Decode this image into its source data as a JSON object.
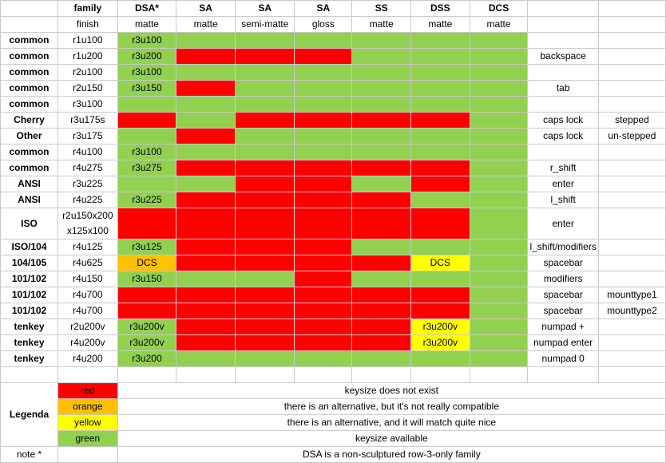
{
  "headers": {
    "row1": [
      "",
      "family",
      "DSA*",
      "SA",
      "SA",
      "SA",
      "SS",
      "DSS",
      "DCS",
      "",
      ""
    ],
    "row2": [
      "",
      "finish",
      "matte",
      "matte",
      "semi-matte",
      "gloss",
      "matte",
      "matte",
      "matte",
      "",
      ""
    ]
  },
  "colors": {
    "red": "#ff0000",
    "green": "#92d050",
    "orange": "#ffc000",
    "yellow": "#ffff00"
  },
  "rows": [
    {
      "family": "common",
      "size": "r1u100",
      "cells": [
        {
          "c": "green",
          "t": "r3u100"
        },
        {
          "c": "green"
        },
        {
          "c": "green"
        },
        {
          "c": "green"
        },
        {
          "c": "green"
        },
        {
          "c": "green"
        },
        {
          "c": "green"
        }
      ],
      "note1": "",
      "note2": ""
    },
    {
      "family": "common",
      "size": "r1u200",
      "cells": [
        {
          "c": "green",
          "t": "r3u200"
        },
        {
          "c": "red"
        },
        {
          "c": "red"
        },
        {
          "c": "red"
        },
        {
          "c": "green"
        },
        {
          "c": "green"
        },
        {
          "c": "green"
        }
      ],
      "note1": "backspace",
      "note2": ""
    },
    {
      "family": "common",
      "size": "r2u100",
      "cells": [
        {
          "c": "green",
          "t": "r3u100"
        },
        {
          "c": "green"
        },
        {
          "c": "green"
        },
        {
          "c": "green"
        },
        {
          "c": "green"
        },
        {
          "c": "green"
        },
        {
          "c": "green"
        }
      ],
      "note1": "",
      "note2": ""
    },
    {
      "family": "common",
      "size": "r2u150",
      "cells": [
        {
          "c": "green",
          "t": "r3u150"
        },
        {
          "c": "red"
        },
        {
          "c": "green"
        },
        {
          "c": "green"
        },
        {
          "c": "green"
        },
        {
          "c": "green"
        },
        {
          "c": "green"
        }
      ],
      "note1": "tab",
      "note2": ""
    },
    {
      "family": "common",
      "size": "r3u100",
      "cells": [
        {
          "c": "green"
        },
        {
          "c": "green"
        },
        {
          "c": "green"
        },
        {
          "c": "green"
        },
        {
          "c": "green"
        },
        {
          "c": "green"
        },
        {
          "c": "green"
        }
      ],
      "note1": "",
      "note2": ""
    },
    {
      "family": "Cherry",
      "size": "r3u175s",
      "cells": [
        {
          "c": "red"
        },
        {
          "c": "green"
        },
        {
          "c": "red"
        },
        {
          "c": "red"
        },
        {
          "c": "red"
        },
        {
          "c": "red"
        },
        {
          "c": "green"
        }
      ],
      "note1": "caps lock",
      "note2": "stepped"
    },
    {
      "family": "Other",
      "size": "r3u175",
      "cells": [
        {
          "c": "green"
        },
        {
          "c": "red"
        },
        {
          "c": "green"
        },
        {
          "c": "green"
        },
        {
          "c": "green"
        },
        {
          "c": "green"
        },
        {
          "c": "green"
        }
      ],
      "note1": "caps lock",
      "note2": "un-stepped"
    },
    {
      "family": "common",
      "size": "r4u100",
      "cells": [
        {
          "c": "green",
          "t": "r3u100"
        },
        {
          "c": "green"
        },
        {
          "c": "green"
        },
        {
          "c": "green"
        },
        {
          "c": "green"
        },
        {
          "c": "green"
        },
        {
          "c": "green"
        }
      ],
      "note1": "",
      "note2": ""
    },
    {
      "family": "common",
      "size": "r4u275",
      "cells": [
        {
          "c": "green",
          "t": "r3u275"
        },
        {
          "c": "red"
        },
        {
          "c": "red"
        },
        {
          "c": "red"
        },
        {
          "c": "red"
        },
        {
          "c": "red"
        },
        {
          "c": "green"
        }
      ],
      "note1": "r_shift",
      "note2": ""
    },
    {
      "family": "ANSI",
      "size": "r3u225",
      "cells": [
        {
          "c": "green"
        },
        {
          "c": "green"
        },
        {
          "c": "red"
        },
        {
          "c": "red"
        },
        {
          "c": "green"
        },
        {
          "c": "red"
        },
        {
          "c": "green"
        }
      ],
      "note1": "enter",
      "note2": ""
    },
    {
      "family": "ANSI",
      "size": "r4u225",
      "cells": [
        {
          "c": "green",
          "t": "r3u225"
        },
        {
          "c": "red"
        },
        {
          "c": "red"
        },
        {
          "c": "red"
        },
        {
          "c": "red"
        },
        {
          "c": "green"
        },
        {
          "c": "green"
        }
      ],
      "note1": "l_shift",
      "note2": ""
    },
    {
      "family": "ISO",
      "size": "r2u150x200",
      "size2": "x125x100",
      "tall": true,
      "cells": [
        {
          "c": "red"
        },
        {
          "c": "red"
        },
        {
          "c": "red"
        },
        {
          "c": "red"
        },
        {
          "c": "red"
        },
        {
          "c": "red"
        },
        {
          "c": "green"
        }
      ],
      "note1": "enter",
      "note2": ""
    },
    {
      "family": "ISO/104",
      "size": "r4u125",
      "cells": [
        {
          "c": "green",
          "t": "r3u125"
        },
        {
          "c": "red"
        },
        {
          "c": "red"
        },
        {
          "c": "red"
        },
        {
          "c": "green"
        },
        {
          "c": "green"
        },
        {
          "c": "green"
        }
      ],
      "note1": "l_shift/modifiers",
      "note2": ""
    },
    {
      "family": "104/105",
      "size": "r4u625",
      "cells": [
        {
          "c": "orange",
          "t": "DCS"
        },
        {
          "c": "red"
        },
        {
          "c": "red"
        },
        {
          "c": "red"
        },
        {
          "c": "red"
        },
        {
          "c": "yellow",
          "t": "DCS"
        },
        {
          "c": "green"
        }
      ],
      "note1": "spacebar",
      "note2": ""
    },
    {
      "family": "101/102",
      "size": "r4u150",
      "cells": [
        {
          "c": "green",
          "t": "r3u150"
        },
        {
          "c": "green"
        },
        {
          "c": "green"
        },
        {
          "c": "red"
        },
        {
          "c": "green"
        },
        {
          "c": "green"
        },
        {
          "c": "green"
        }
      ],
      "note1": "modifiers",
      "note2": ""
    },
    {
      "family": "101/102",
      "size": "r4u700",
      "cells": [
        {
          "c": "red"
        },
        {
          "c": "red"
        },
        {
          "c": "red"
        },
        {
          "c": "red"
        },
        {
          "c": "red"
        },
        {
          "c": "red"
        },
        {
          "c": "green"
        }
      ],
      "note1": "spacebar",
      "note2": "mounttype1"
    },
    {
      "family": "101/102",
      "size": "r4u700",
      "cells": [
        {
          "c": "red"
        },
        {
          "c": "red"
        },
        {
          "c": "red"
        },
        {
          "c": "red"
        },
        {
          "c": "red"
        },
        {
          "c": "red"
        },
        {
          "c": "green"
        }
      ],
      "note1": "spacebar",
      "note2": "mounttype2"
    },
    {
      "family": "tenkey",
      "size": "r2u200v",
      "cells": [
        {
          "c": "green",
          "t": "r3u200v"
        },
        {
          "c": "red"
        },
        {
          "c": "red"
        },
        {
          "c": "red"
        },
        {
          "c": "red"
        },
        {
          "c": "yellow",
          "t": "r3u200v"
        },
        {
          "c": "green"
        }
      ],
      "note1": "numpad +",
      "note2": ""
    },
    {
      "family": "tenkey",
      "size": "r4u200v",
      "cells": [
        {
          "c": "green",
          "t": "r3u200v"
        },
        {
          "c": "red"
        },
        {
          "c": "red"
        },
        {
          "c": "red"
        },
        {
          "c": "red"
        },
        {
          "c": "yellow",
          "t": "r3u200v"
        },
        {
          "c": "green"
        }
      ],
      "note1": "numpad enter",
      "note2": ""
    },
    {
      "family": "tenkey",
      "size": "r4u200",
      "cells": [
        {
          "c": "green",
          "t": "r3u200"
        },
        {
          "c": "green"
        },
        {
          "c": "green"
        },
        {
          "c": "green"
        },
        {
          "c": "green"
        },
        {
          "c": "green"
        },
        {
          "c": "green"
        }
      ],
      "note1": "numpad 0",
      "note2": ""
    }
  ],
  "legend": {
    "title": "Legenda",
    "items": [
      {
        "color": "red",
        "label": "red",
        "desc": "keysize does not exist"
      },
      {
        "color": "orange",
        "label": "orange",
        "desc": "there is an alternative, but it's not really compatible"
      },
      {
        "color": "yellow",
        "label": "yellow",
        "desc": "there is an alternative, and it will match quite nice"
      },
      {
        "color": "green",
        "label": "green",
        "desc": "keysize available"
      }
    ]
  },
  "footnote": {
    "label": "note *",
    "text": "DSA is a non-sculptured row-3-only family"
  }
}
